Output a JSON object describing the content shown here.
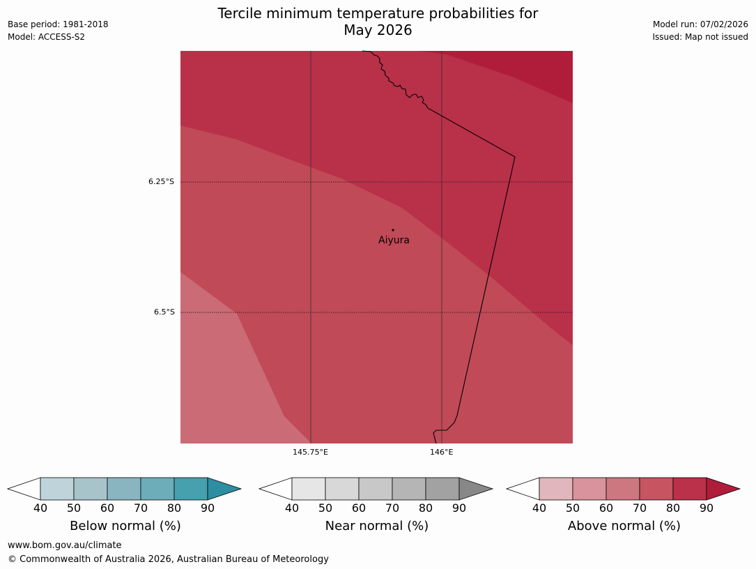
{
  "title": {
    "line1": "Tercile minimum temperature probabilities for",
    "line2": "May 2026"
  },
  "meta_left": {
    "base_period": "Base period: 1981-2018",
    "model": "Model: ACCESS-S2"
  },
  "meta_right": {
    "model_run": "Model run: 07/02/2026",
    "issued": "Issued: Map not issued"
  },
  "map": {
    "lat_ticks": [
      "6.25°S",
      "6.5°S"
    ],
    "lon_ticks": [
      "145.75°E",
      "146°E"
    ],
    "location": {
      "name": "Aiyura"
    },
    "colors": {
      "above_70_80": "#c04a57",
      "above_60_70": "#ca6b75",
      "above_80_90": "#b93049",
      "above_90": "#b01d3b"
    }
  },
  "colorbars": [
    {
      "label": "Below normal (%)",
      "ticks": [
        "40",
        "50",
        "60",
        "70",
        "80",
        "90"
      ],
      "colors": [
        "#bfd4da",
        "#a6c4ca",
        "#89b5c1",
        "#6dadba",
        "#46a0ae"
      ],
      "arrow_color": "#2c8ea0"
    },
    {
      "label": "Near normal (%)",
      "ticks": [
        "40",
        "50",
        "60",
        "70",
        "80",
        "90"
      ],
      "colors": [
        "#e6e6e6",
        "#d8d8d8",
        "#c8c8c8",
        "#b5b5b5",
        "#a2a2a2"
      ],
      "arrow_color": "#888888"
    },
    {
      "label": "Above normal (%)",
      "ticks": [
        "40",
        "50",
        "60",
        "70",
        "80",
        "90"
      ],
      "colors": [
        "#e1b6bc",
        "#d9939c",
        "#cd7780",
        "#c65461",
        "#ba3149"
      ],
      "arrow_color": "#b01d3b"
    }
  ],
  "footer": {
    "website": "www.bom.gov.au/climate",
    "copyright": "© Commonwealth of Australia 2026, Australian Bureau of Meteorology"
  }
}
